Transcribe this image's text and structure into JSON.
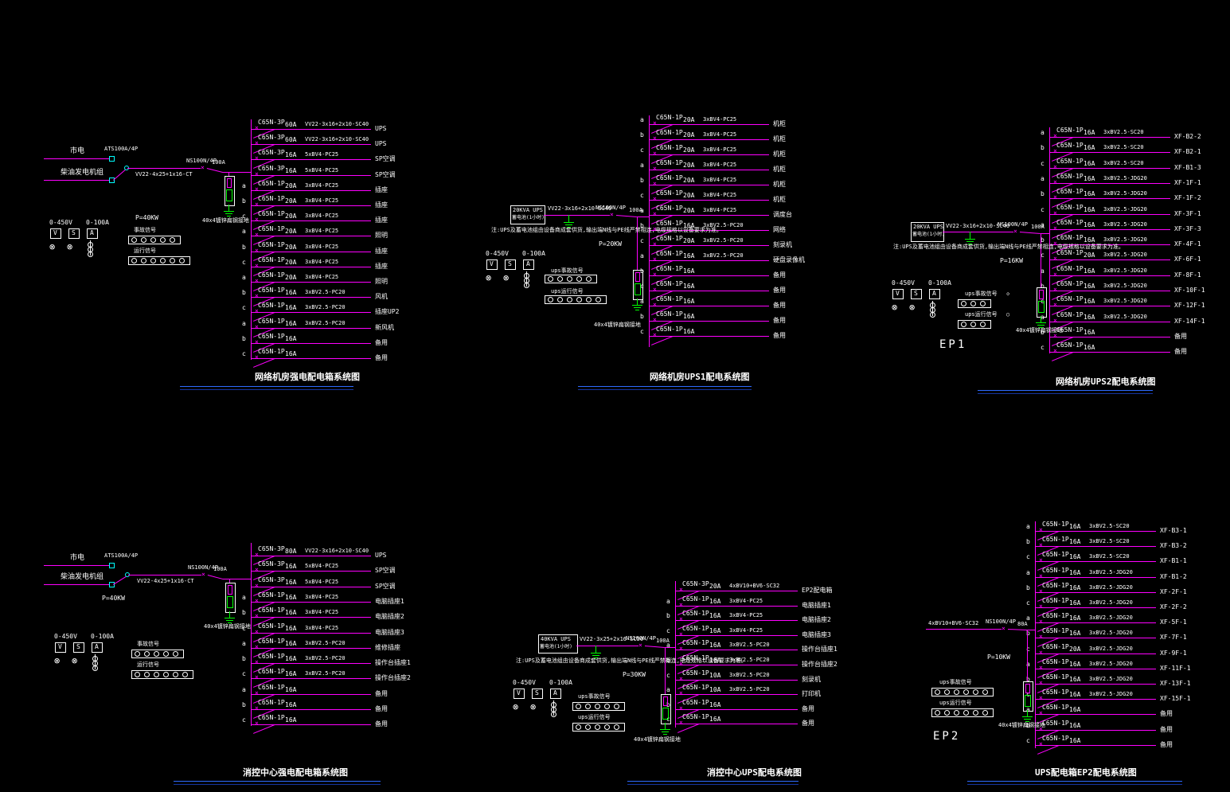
{
  "colors": {
    "wire": "#ff00ff",
    "text": "#ffffff",
    "ground": "#00ff00",
    "terminal": "#00ffff",
    "underline1": "#2e6bff",
    "underline2": "#16359e"
  },
  "glyphs": {
    "cross": "×",
    "lamp": "⊗"
  },
  "panels": [
    {
      "title": "网络机房强电配电箱系统图",
      "power": "P=40KW",
      "ground_note": "40x4镀锌扁钢接地",
      "incoming": {
        "source1": "市电",
        "source2": "柴油发电机组",
        "ats": "ATS100A/4P",
        "cable": "VV22-4x25+1x16-CT",
        "breaker": "NS100N/4P",
        "amp": "100A"
      },
      "meters": {
        "volt_range": "0-450V",
        "amp_range": "0-100A",
        "v": "V",
        "s": "S",
        "a": "A"
      },
      "strips": [
        {
          "label": "事故信号"
        },
        {
          "label": "运行信号"
        }
      ],
      "branches": [
        {
          "ph": "",
          "model": "C65N-3P",
          "amp": "60A",
          "cable": "VV22-3x16+2x10-SC40",
          "load": "UPS"
        },
        {
          "ph": "",
          "model": "C65N-3P",
          "amp": "60A",
          "cable": "VV22-3x16+2x10-SC40",
          "load": "UPS"
        },
        {
          "ph": "",
          "model": "C65N-3P",
          "amp": "16A",
          "cable": "5xBV4-PC25",
          "load": "SP空调"
        },
        {
          "ph": "",
          "model": "C65N-3P",
          "amp": "16A",
          "cable": "5xBV4-PC25",
          "load": "SP空调"
        },
        {
          "ph": "a",
          "model": "C65N-1P",
          "amp": "20A",
          "cable": "3xBV4-PC25",
          "load": "插座"
        },
        {
          "ph": "b",
          "model": "C65N-1P",
          "amp": "20A",
          "cable": "3xBV4-PC25",
          "load": "插座"
        },
        {
          "ph": "c",
          "model": "C65N-1P",
          "amp": "20A",
          "cable": "3xBV4-PC25",
          "load": "插座"
        },
        {
          "ph": "a",
          "model": "C65N-1P",
          "amp": "20A",
          "cable": "3xBV4-PC25",
          "load": "照明"
        },
        {
          "ph": "b",
          "model": "C65N-1P",
          "amp": "20A",
          "cable": "3xBV4-PC25",
          "load": "插座"
        },
        {
          "ph": "c",
          "model": "C65N-1P",
          "amp": "20A",
          "cable": "3xBV4-PC25",
          "load": "插座"
        },
        {
          "ph": "a",
          "model": "C65N-1P",
          "amp": "20A",
          "cable": "3xBV4-PC25",
          "load": "照明"
        },
        {
          "ph": "b",
          "model": "C65N-1P",
          "amp": "16A",
          "cable": "3xBV2.5-PC20",
          "load": "风机"
        },
        {
          "ph": "c",
          "model": "C65N-1P",
          "amp": "16A",
          "cable": "3xBV2.5-PC20",
          "load": "插座UP2"
        },
        {
          "ph": "a",
          "model": "C65N-1P",
          "amp": "16A",
          "cable": "3xBV2.5-PC20",
          "load": "新风机"
        },
        {
          "ph": "b",
          "model": "C65N-1P",
          "amp": "16A",
          "cable": "",
          "load": "备用"
        },
        {
          "ph": "c",
          "model": "C65N-1P",
          "amp": "16A",
          "cable": "",
          "load": "备用"
        }
      ]
    },
    {
      "title": "网络机房UPS1配电系统图",
      "power": "P=20KW",
      "ground_note": "40x4镀锌扁钢接地",
      "source": {
        "line1": "20KVA UPS",
        "line2": "蓄电池(1小时)"
      },
      "incoming": {
        "cable": "VV22-3x16+2x10-SC40",
        "breaker": "NS100N/4P",
        "amp": "100A"
      },
      "note": "注:UPS及蓄电池组由设备商成套供货,输出端N线与PE线严禁相连,电缆规格以设备要求为准。",
      "meters": {
        "volt_range": "0-450V",
        "amp_range": "0-100A",
        "v": "V",
        "s": "S",
        "a": "A"
      },
      "strips": [
        {
          "label": "ups事故信号"
        },
        {
          "label": "ups运行信号"
        }
      ],
      "branches": [
        {
          "ph": "a",
          "model": "C65N-1P",
          "amp": "20A",
          "cable": "3xBV4-PC25",
          "load": "机柜"
        },
        {
          "ph": "b",
          "model": "C65N-1P",
          "amp": "20A",
          "cable": "3xBV4-PC25",
          "load": "机柜"
        },
        {
          "ph": "c",
          "model": "C65N-1P",
          "amp": "20A",
          "cable": "3xBV4-PC25",
          "load": "机柜"
        },
        {
          "ph": "a",
          "model": "C65N-1P",
          "amp": "20A",
          "cable": "3xBV4-PC25",
          "load": "机柜"
        },
        {
          "ph": "b",
          "model": "C65N-1P",
          "amp": "20A",
          "cable": "3xBV4-PC25",
          "load": "机柜"
        },
        {
          "ph": "c",
          "model": "C65N-1P",
          "amp": "20A",
          "cable": "3xBV4-PC25",
          "load": "机柜"
        },
        {
          "ph": "a",
          "model": "C65N-1P",
          "amp": "20A",
          "cable": "3xBV4-PC25",
          "load": "调度台"
        },
        {
          "ph": "b",
          "model": "C65N-1P",
          "amp": "16A",
          "cable": "3xBV2.5-PC20",
          "load": "网络"
        },
        {
          "ph": "c",
          "model": "C65N-1P",
          "amp": "20A",
          "cable": "3xBV2.5-PC20",
          "load": "刻录机"
        },
        {
          "ph": "a",
          "model": "C65N-1P",
          "amp": "16A",
          "cable": "3xBV2.5-PC20",
          "load": "硬盘录像机"
        },
        {
          "ph": "b",
          "model": "C65N-1P",
          "amp": "16A",
          "cable": "",
          "load": "备用"
        },
        {
          "ph": "c",
          "model": "C65N-1P",
          "amp": "16A",
          "cable": "",
          "load": "备用"
        },
        {
          "ph": "a",
          "model": "C65N-1P",
          "amp": "16A",
          "cable": "",
          "load": "备用"
        },
        {
          "ph": "b",
          "model": "C65N-1P",
          "amp": "16A",
          "cable": "",
          "load": "备用"
        },
        {
          "ph": "c",
          "model": "C65N-1P",
          "amp": "16A",
          "cable": "",
          "load": "备用"
        }
      ]
    },
    {
      "title": "网络机房UPS2配电系统图",
      "power": "P=16KW",
      "ground_note": "40x4镀锌扁钢接地",
      "ep": "EP1",
      "source": {
        "line1": "20KVA UPS",
        "line2": "蓄电池(1小时)"
      },
      "incoming": {
        "cable": "VV22-3x16+2x10-SC40",
        "breaker": "NS100N/4P",
        "amp": "100A"
      },
      "note": "注:UPS及蓄电池组由设备商成套供货,输出端N线与PE线严禁相连,电缆规格以设备要求为准。",
      "meters": {
        "volt_range": "0-450V",
        "amp_range": "0-100A",
        "v": "V",
        "s": "S",
        "a": "A"
      },
      "strips": [
        {
          "label": "ups事故信号",
          "sym": "◇"
        },
        {
          "label": "ups运行信号",
          "sym": "○"
        }
      ],
      "branches": [
        {
          "ph": "a",
          "model": "C65N-1P",
          "amp": "16A",
          "cable": "3xBV2.5-SC20",
          "load": "XF-B2-2"
        },
        {
          "ph": "b",
          "model": "C65N-1P",
          "amp": "16A",
          "cable": "3xBV2.5-SC20",
          "load": "XF-B2-1"
        },
        {
          "ph": "c",
          "model": "C65N-1P",
          "amp": "16A",
          "cable": "3xBV2.5-SC20",
          "load": "XF-B1-3"
        },
        {
          "ph": "a",
          "model": "C65N-1P",
          "amp": "16A",
          "cable": "3xBV2.5-JDG20",
          "load": "XF-1F-1"
        },
        {
          "ph": "b",
          "model": "C65N-1P",
          "amp": "16A",
          "cable": "3xBV2.5-JDG20",
          "load": "XF-1F-2"
        },
        {
          "ph": "c",
          "model": "C65N-1P",
          "amp": "16A",
          "cable": "3xBV2.5-JDG20",
          "load": "XF-3F-1"
        },
        {
          "ph": "a",
          "model": "C65N-1P",
          "amp": "16A",
          "cable": "3xBV2.5-JDG20",
          "load": "XF-3F-3"
        },
        {
          "ph": "b",
          "model": "C65N-1P",
          "amp": "16A",
          "cable": "3xBV2.5-JDG20",
          "load": "XF-4F-1"
        },
        {
          "ph": "c",
          "model": "C65N-1P",
          "amp": "20A",
          "cable": "3xBV2.5-JDG20",
          "load": "XF-6F-1"
        },
        {
          "ph": "a",
          "model": "C65N-1P",
          "amp": "16A",
          "cable": "3xBV2.5-JDG20",
          "load": "XF-8F-1"
        },
        {
          "ph": "b",
          "model": "C65N-1P",
          "amp": "16A",
          "cable": "3xBV2.5-JDG20",
          "load": "XF-10F-1"
        },
        {
          "ph": "c",
          "model": "C65N-1P",
          "amp": "16A",
          "cable": "3xBV2.5-JDG20",
          "load": "XF-12F-1"
        },
        {
          "ph": "a",
          "model": "C65N-1P",
          "amp": "16A",
          "cable": "3xBV2.5-JDG20",
          "load": "XF-14F-1"
        },
        {
          "ph": "b",
          "model": "C65N-1P",
          "amp": "16A",
          "cable": "",
          "load": "备用"
        },
        {
          "ph": "c",
          "model": "C65N-1P",
          "amp": "16A",
          "cable": "",
          "load": "备用"
        }
      ]
    },
    {
      "title": "消控中心强电配电箱系统图",
      "power": "P=40KW",
      "ground_note": "40x4镀锌扁钢接地",
      "incoming": {
        "source1": "市电",
        "source2": "柴油发电机组",
        "ats": "ATS100A/4P",
        "cable": "VV22-4x25+1x16-CT",
        "breaker": "NS100N/4P",
        "amp": "100A"
      },
      "meters": {
        "volt_range": "0-450V",
        "amp_range": "0-100A",
        "v": "V",
        "s": "S",
        "a": "A"
      },
      "strips": [
        {
          "label": "事故信号"
        },
        {
          "label": "运行信号"
        }
      ],
      "branches": [
        {
          "ph": "",
          "model": "C65N-3P",
          "amp": "80A",
          "cable": "VV22-3x16+2x10-SC40",
          "load": "UPS"
        },
        {
          "ph": "",
          "model": "C65N-3P",
          "amp": "16A",
          "cable": "5xBV4-PC25",
          "load": "SP空调"
        },
        {
          "ph": "",
          "model": "C65N-3P",
          "amp": "16A",
          "cable": "5xBV4-PC25",
          "load": "SP空调"
        },
        {
          "ph": "a",
          "model": "C65N-1P",
          "amp": "16A",
          "cable": "3xBV4-PC25",
          "load": "电脑插座1"
        },
        {
          "ph": "b",
          "model": "C65N-1P",
          "amp": "16A",
          "cable": "3xBV4-PC25",
          "load": "电脑插座2"
        },
        {
          "ph": "c",
          "model": "C65N-1P",
          "amp": "16A",
          "cable": "3xBV4-PC25",
          "load": "电脑插座3"
        },
        {
          "ph": "a",
          "model": "C65N-1P",
          "amp": "16A",
          "cable": "3xBV2.5-PC20",
          "load": "维修插座"
        },
        {
          "ph": "b",
          "model": "C65N-1P",
          "amp": "16A",
          "cable": "3xBV2.5-PC20",
          "load": "操作台插座1"
        },
        {
          "ph": "c",
          "model": "C65N-1P",
          "amp": "16A",
          "cable": "3xBV2.5-PC20",
          "load": "操作台插座2"
        },
        {
          "ph": "a",
          "model": "C65N-1P",
          "amp": "16A",
          "cable": "",
          "load": "备用"
        },
        {
          "ph": "b",
          "model": "C65N-1P",
          "amp": "16A",
          "cable": "",
          "load": "备用"
        },
        {
          "ph": "c",
          "model": "C65N-1P",
          "amp": "16A",
          "cable": "",
          "load": "备用"
        }
      ]
    },
    {
      "title": "消控中心UPS配电系统图",
      "power": "P=30KW",
      "ground_note": "40x4镀锌扁钢接地",
      "source": {
        "line1": "40KVA UPS",
        "line2": "蓄电池(1小时)"
      },
      "incoming": {
        "cable": "VV22-3x25+2x16-SC50",
        "breaker": "NS100N/4P",
        "amp": "100A"
      },
      "note": "注:UPS及蓄电池组由设备商成套供货,输出端N线与PE线严禁相连,电缆规格以设备要求为准。",
      "meters": {
        "volt_range": "0-450V",
        "amp_range": "0-100A",
        "v": "V",
        "s": "S",
        "a": "A"
      },
      "strips": [
        {
          "label": "ups事故信号"
        },
        {
          "label": "ups运行信号"
        }
      ],
      "branches": [
        {
          "ph": "",
          "model": "C65N-3P",
          "amp": "20A",
          "cable": "4xBV10+BV6-SC32",
          "load": "EP2配电箱"
        },
        {
          "ph": "a",
          "model": "C65N-1P",
          "amp": "16A",
          "cable": "3xBV4-PC25",
          "load": "电脑插座1"
        },
        {
          "ph": "b",
          "model": "C65N-1P",
          "amp": "16A",
          "cable": "3xBV4-PC25",
          "load": "电脑插座2"
        },
        {
          "ph": "c",
          "model": "C65N-1P",
          "amp": "16A",
          "cable": "3xBV4-PC25",
          "load": "电脑插座3"
        },
        {
          "ph": "a",
          "model": "C65N-1P",
          "amp": "16A",
          "cable": "3xBV2.5-PC20",
          "load": "操作台插座1"
        },
        {
          "ph": "b",
          "model": "C65N-1P",
          "amp": "16A",
          "cable": "3xBV2.5-PC20",
          "load": "操作台插座2"
        },
        {
          "ph": "c",
          "model": "C65N-1P",
          "amp": "10A",
          "cable": "3xBV2.5-PC20",
          "load": "刻录机"
        },
        {
          "ph": "a",
          "model": "C65N-1P",
          "amp": "10A",
          "cable": "3xBV2.5-PC20",
          "load": "打印机"
        },
        {
          "ph": "b",
          "model": "C65N-1P",
          "amp": "16A",
          "cable": "",
          "load": "备用"
        },
        {
          "ph": "c",
          "model": "C65N-1P",
          "amp": "16A",
          "cable": "",
          "load": "备用"
        }
      ]
    },
    {
      "title": "UPS配电箱EP2配电系统图",
      "power": "P=10KW",
      "ground_note": "40x4镀锌扁钢接地",
      "ep": "EP2",
      "incoming": {
        "cable": "4xBV10+BV6-SC32",
        "breaker": "NS100N/4P",
        "amp": "80A"
      },
      "strips": [
        {
          "label": "ups事故信号"
        },
        {
          "label": "ups运行信号"
        }
      ],
      "branches": [
        {
          "ph": "a",
          "model": "C65N-1P",
          "amp": "16A",
          "cable": "3xBV2.5-SC20",
          "load": "XF-B3-1"
        },
        {
          "ph": "b",
          "model": "C65N-1P",
          "amp": "16A",
          "cable": "3xBV2.5-SC20",
          "load": "XF-B3-2"
        },
        {
          "ph": "c",
          "model": "C65N-1P",
          "amp": "16A",
          "cable": "3xBV2.5-SC20",
          "load": "XF-B1-1"
        },
        {
          "ph": "a",
          "model": "C65N-1P",
          "amp": "16A",
          "cable": "3xBV2.5-JDG20",
          "load": "XF-B1-2"
        },
        {
          "ph": "b",
          "model": "C65N-1P",
          "amp": "16A",
          "cable": "3xBV2.5-JDG20",
          "load": "XF-2F-1"
        },
        {
          "ph": "c",
          "model": "C65N-1P",
          "amp": "16A",
          "cable": "3xBV2.5-JDG20",
          "load": "XF-2F-2"
        },
        {
          "ph": "a",
          "model": "C65N-1P",
          "amp": "16A",
          "cable": "3xBV2.5-JDG20",
          "load": "XF-5F-1"
        },
        {
          "ph": "b",
          "model": "C65N-1P",
          "amp": "16A",
          "cable": "3xBV2.5-JDG20",
          "load": "XF-7F-1"
        },
        {
          "ph": "c",
          "model": "C65N-1P",
          "amp": "20A",
          "cable": "3xBV2.5-JDG20",
          "load": "XF-9F-1"
        },
        {
          "ph": "a",
          "model": "C65N-1P",
          "amp": "16A",
          "cable": "3xBV2.5-JDG20",
          "load": "XF-11F-1"
        },
        {
          "ph": "b",
          "model": "C65N-1P",
          "amp": "16A",
          "cable": "3xBV2.5-JDG20",
          "load": "XF-13F-1"
        },
        {
          "ph": "c",
          "model": "C65N-1P",
          "amp": "16A",
          "cable": "3xBV2.5-JDG20",
          "load": "XF-15F-1"
        },
        {
          "ph": "a",
          "model": "C65N-1P",
          "amp": "16A",
          "cable": "",
          "load": "备用"
        },
        {
          "ph": "b",
          "model": "C65N-1P",
          "amp": "16A",
          "cable": "",
          "load": "备用"
        },
        {
          "ph": "c",
          "model": "C65N-1P",
          "amp": "16A",
          "cable": "",
          "load": "备用"
        }
      ]
    }
  ]
}
